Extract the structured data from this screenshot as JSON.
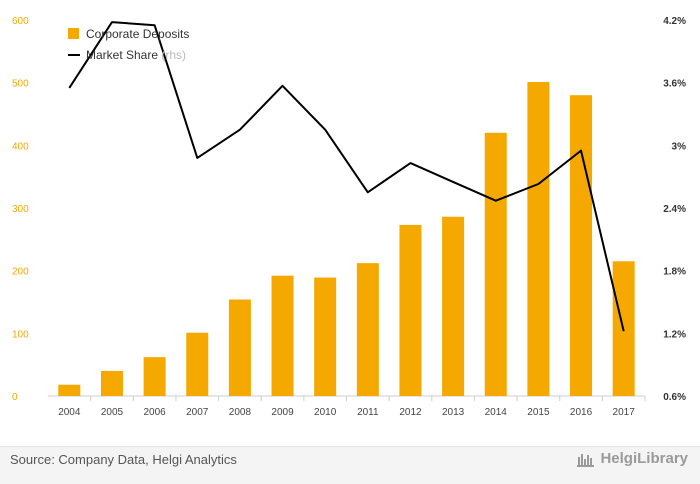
{
  "chart_data": {
    "type": "bar+line",
    "categories": [
      "2004",
      "2005",
      "2006",
      "2007",
      "2008",
      "2009",
      "2010",
      "2011",
      "2012",
      "2013",
      "2014",
      "2015",
      "2016",
      "2017"
    ],
    "series": [
      {
        "name": "Corporate Deposits",
        "type": "bar",
        "axis": "left",
        "color": "#f5a800",
        "values": [
          18,
          40,
          62,
          101,
          154,
          192,
          189,
          212,
          273,
          286,
          420,
          501,
          480,
          215
        ]
      },
      {
        "name": "Market Share",
        "name_suffix": "(rhs)",
        "type": "line",
        "axis": "right",
        "color": "#000000",
        "values": [
          3.55,
          4.18,
          4.15,
          2.88,
          3.15,
          3.57,
          3.15,
          2.55,
          2.83,
          2.65,
          2.47,
          2.63,
          2.95,
          1.22
        ]
      }
    ],
    "y_left": {
      "min": 0,
      "max": 600,
      "ticks": [
        "0",
        "100",
        "200",
        "300",
        "400",
        "500",
        "600"
      ]
    },
    "y_right": {
      "min": 0.6,
      "max": 4.2,
      "ticks": [
        "0.6%",
        "1.2%",
        "1.8%",
        "2.4%",
        "3%",
        "3.6%",
        "4.2%"
      ]
    },
    "legend_placement": "top-left",
    "grid": false
  },
  "footer": {
    "source": "Source: Company Data, Helgi Analytics",
    "logo_text": "HelgiLibrary"
  }
}
